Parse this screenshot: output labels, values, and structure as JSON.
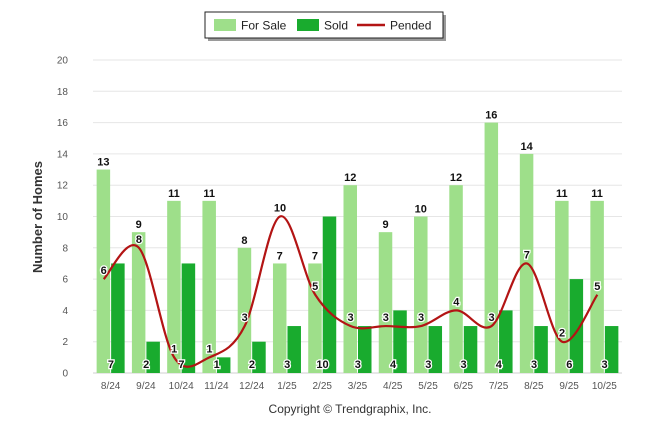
{
  "chart_data": {
    "type": "bar",
    "categories": [
      "8/24",
      "9/24",
      "10/24",
      "11/24",
      "12/24",
      "1/25",
      "2/25",
      "3/25",
      "4/25",
      "5/25",
      "6/25",
      "7/25",
      "8/25",
      "9/25",
      "10/25"
    ],
    "series": [
      {
        "name": "For Sale",
        "kind": "bar",
        "color": "#9edf8a",
        "values": [
          13,
          9,
          11,
          11,
          8,
          7,
          7,
          12,
          9,
          10,
          12,
          16,
          14,
          11,
          11
        ]
      },
      {
        "name": "Sold",
        "kind": "bar",
        "color": "#19ab2e",
        "values": [
          7,
          2,
          7,
          1,
          2,
          3,
          10,
          3,
          4,
          3,
          3,
          4,
          3,
          6,
          3
        ]
      },
      {
        "name": "Pended",
        "kind": "line",
        "color": "#b31414",
        "values": [
          6,
          8,
          1,
          1,
          3,
          10,
          5,
          3,
          3,
          3,
          4,
          3,
          7,
          2,
          5
        ]
      }
    ],
    "title": "",
    "xlabel": "",
    "ylabel": "Number of Homes",
    "ylim": [
      0,
      20
    ],
    "yticks": [
      0,
      2,
      4,
      6,
      8,
      10,
      12,
      14,
      16,
      18,
      20
    ],
    "grid": true,
    "legend": "top-center",
    "footer": "Copyright © Trendgraphix, Inc."
  }
}
